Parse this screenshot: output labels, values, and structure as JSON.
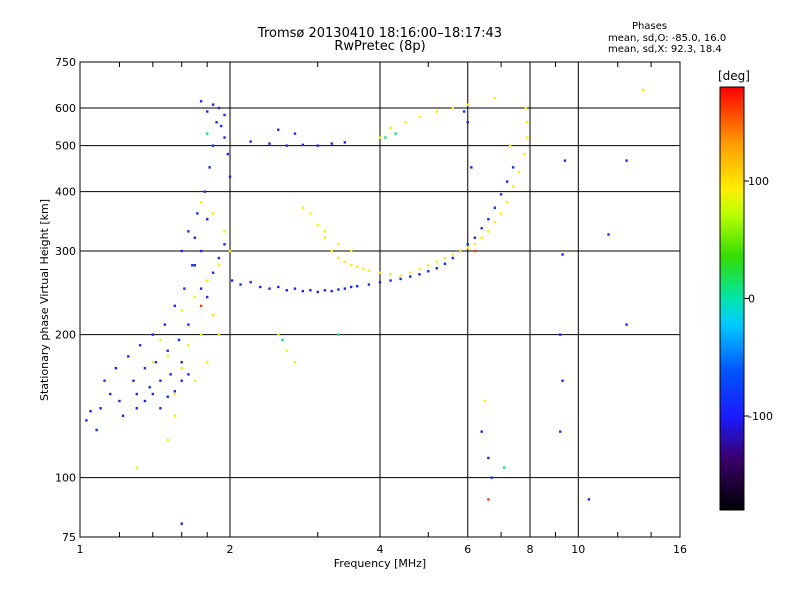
{
  "title": {
    "line1": "Tromsø 20130410 18:16:00–18:17:43",
    "line2": "RwPretec (8p)"
  },
  "info": {
    "heading": "Phases",
    "line_o": "mean, sd,O: -85.0, 16.0",
    "line_x": "mean, sd,X:  92.3, 18.4"
  },
  "chart_data": {
    "type": "scatter",
    "xlabel": "Frequency [MHz]",
    "ylabel": "Stationary phase Virtual Height [km]",
    "x_scale": "log",
    "y_scale": "log",
    "xlim": [
      1,
      16
    ],
    "ylim": [
      75,
      750
    ],
    "x_ticks": [
      1,
      2,
      4,
      6,
      8,
      10,
      16
    ],
    "x_tick_labels": [
      "1",
      "2",
      "4",
      "6",
      "8",
      "10",
      "16"
    ],
    "y_ticks": [
      75,
      100,
      200,
      300,
      400,
      500,
      600,
      750
    ],
    "y_tick_labels": [
      "75",
      "100",
      "200",
      "300",
      "400",
      "500",
      "600",
      "750"
    ],
    "grid": true,
    "colorbar": {
      "label": "[deg]",
      "range": [
        -180,
        180
      ],
      "ticks": [
        100,
        0,
        -100
      ],
      "tick_labels": [
        "100",
        "0",
        "-100"
      ]
    },
    "series": [
      {
        "color_phase": -90,
        "points": [
          [
            1.03,
            132
          ],
          [
            1.05,
            138
          ],
          [
            1.08,
            126
          ],
          [
            1.1,
            140
          ],
          [
            1.12,
            160
          ],
          [
            1.15,
            150
          ],
          [
            1.18,
            170
          ],
          [
            1.2,
            145
          ],
          [
            1.22,
            135
          ],
          [
            1.25,
            180
          ],
          [
            1.28,
            160
          ],
          [
            1.3,
            150
          ],
          [
            1.32,
            190
          ],
          [
            1.35,
            170
          ],
          [
            1.38,
            155
          ],
          [
            1.4,
            200
          ],
          [
            1.42,
            175
          ],
          [
            1.45,
            160
          ],
          [
            1.48,
            210
          ],
          [
            1.5,
            185
          ],
          [
            1.52,
            165
          ],
          [
            1.55,
            230
          ],
          [
            1.58,
            195
          ],
          [
            1.6,
            175
          ],
          [
            1.62,
            250
          ],
          [
            1.65,
            210
          ],
          [
            1.68,
            280
          ],
          [
            1.7,
            320
          ],
          [
            1.72,
            360
          ],
          [
            1.75,
            300
          ],
          [
            1.78,
            400
          ],
          [
            1.8,
            350
          ],
          [
            1.82,
            450
          ],
          [
            1.85,
            500
          ],
          [
            1.88,
            560
          ],
          [
            1.9,
            600
          ],
          [
            1.92,
            550
          ],
          [
            1.95,
            520
          ],
          [
            1.98,
            480
          ],
          [
            2.0,
            430
          ],
          [
            1.75,
            620
          ],
          [
            1.8,
            590
          ],
          [
            1.85,
            610
          ],
          [
            1.95,
            580
          ],
          [
            2.02,
            260
          ],
          [
            2.1,
            255
          ],
          [
            2.2,
            258
          ],
          [
            2.3,
            252
          ],
          [
            2.4,
            250
          ],
          [
            2.5,
            252
          ],
          [
            2.6,
            248
          ],
          [
            2.7,
            250
          ],
          [
            2.8,
            247
          ],
          [
            2.9,
            248
          ],
          [
            3.0,
            246
          ],
          [
            3.1,
            248
          ],
          [
            3.2,
            247
          ],
          [
            3.3,
            249
          ],
          [
            3.4,
            250
          ],
          [
            3.5,
            252
          ],
          [
            3.6,
            253
          ],
          [
            3.8,
            255
          ],
          [
            4.0,
            258
          ],
          [
            4.2,
            260
          ],
          [
            4.4,
            262
          ],
          [
            4.6,
            265
          ],
          [
            4.8,
            268
          ],
          [
            5.0,
            272
          ],
          [
            5.2,
            276
          ],
          [
            5.4,
            282
          ],
          [
            5.6,
            290
          ],
          [
            5.8,
            300
          ],
          [
            6.0,
            310
          ],
          [
            6.2,
            320
          ],
          [
            6.4,
            335
          ],
          [
            6.6,
            350
          ],
          [
            6.8,
            370
          ],
          [
            7.0,
            395
          ],
          [
            7.2,
            420
          ],
          [
            7.4,
            450
          ],
          [
            2.2,
            510
          ],
          [
            2.4,
            505
          ],
          [
            2.6,
            500
          ],
          [
            2.8,
            502
          ],
          [
            3.0,
            500
          ],
          [
            3.2,
            505
          ],
          [
            3.4,
            508
          ],
          [
            2.5,
            540
          ],
          [
            2.7,
            530
          ],
          [
            1.6,
            300
          ],
          [
            1.65,
            330
          ],
          [
            1.7,
            280
          ],
          [
            1.75,
            250
          ],
          [
            1.8,
            240
          ],
          [
            1.85,
            270
          ],
          [
            1.9,
            290
          ],
          [
            1.95,
            310
          ],
          [
            1.3,
            140
          ],
          [
            1.35,
            145
          ],
          [
            1.4,
            150
          ],
          [
            1.45,
            140
          ],
          [
            1.5,
            148
          ],
          [
            1.55,
            152
          ],
          [
            1.6,
            160
          ],
          [
            1.65,
            165
          ],
          [
            9.2,
            125
          ],
          [
            9.3,
            160
          ],
          [
            9.2,
            200
          ],
          [
            9.3,
            295
          ],
          [
            9.4,
            465
          ],
          [
            12.5,
            465
          ],
          [
            12.5,
            210
          ],
          [
            11.5,
            325
          ],
          [
            6.1,
            450
          ],
          [
            6.0,
            560
          ],
          [
            5.9,
            590
          ],
          [
            6.6,
            110
          ],
          [
            6.7,
            100
          ],
          [
            1.6,
            80
          ],
          [
            10.5,
            90
          ],
          [
            6.4,
            125
          ]
        ]
      },
      {
        "color_phase": 95,
        "points": [
          [
            1.55,
            150
          ],
          [
            1.6,
            170
          ],
          [
            1.65,
            190
          ],
          [
            1.7,
            160
          ],
          [
            1.75,
            200
          ],
          [
            1.8,
            175
          ],
          [
            1.85,
            220
          ],
          [
            1.9,
            200
          ],
          [
            1.6,
            225
          ],
          [
            1.7,
            240
          ],
          [
            1.8,
            260
          ],
          [
            1.9,
            280
          ],
          [
            2.0,
            300
          ],
          [
            1.95,
            330
          ],
          [
            1.85,
            360
          ],
          [
            1.75,
            380
          ],
          [
            3.1,
            320
          ],
          [
            3.2,
            300
          ],
          [
            3.3,
            290
          ],
          [
            3.4,
            285
          ],
          [
            3.5,
            280
          ],
          [
            3.6,
            278
          ],
          [
            3.7,
            275
          ],
          [
            3.8,
            273
          ],
          [
            4.0,
            270
          ],
          [
            4.2,
            268
          ],
          [
            4.4,
            266
          ],
          [
            4.6,
            270
          ],
          [
            4.8,
            275
          ],
          [
            5.0,
            280
          ],
          [
            5.2,
            285
          ],
          [
            5.4,
            290
          ],
          [
            5.6,
            295
          ],
          [
            5.8,
            300
          ],
          [
            6.0,
            305
          ],
          [
            6.2,
            310
          ],
          [
            6.4,
            320
          ],
          [
            6.6,
            330
          ],
          [
            6.8,
            345
          ],
          [
            7.0,
            360
          ],
          [
            7.2,
            380
          ],
          [
            7.4,
            410
          ],
          [
            7.6,
            440
          ],
          [
            7.8,
            480
          ],
          [
            7.9,
            520
          ],
          [
            7.9,
            560
          ],
          [
            7.85,
            600
          ],
          [
            2.9,
            360
          ],
          [
            3.0,
            340
          ],
          [
            3.1,
            330
          ],
          [
            2.8,
            370
          ],
          [
            3.3,
            310
          ],
          [
            3.5,
            300
          ],
          [
            4.0,
            520
          ],
          [
            4.2,
            545
          ],
          [
            4.5,
            560
          ],
          [
            4.8,
            575
          ],
          [
            5.2,
            590
          ],
          [
            5.6,
            600
          ],
          [
            6.0,
            610
          ],
          [
            2.6,
            185
          ],
          [
            2.7,
            175
          ],
          [
            2.5,
            200
          ],
          [
            6.8,
            630
          ],
          [
            7.3,
            500
          ],
          [
            6.5,
            145
          ],
          [
            13.5,
            655
          ],
          [
            1.4,
            175
          ],
          [
            1.5,
            180
          ],
          [
            1.45,
            195
          ],
          [
            1.3,
            105
          ],
          [
            1.5,
            120
          ],
          [
            1.55,
            135
          ]
        ]
      },
      {
        "color_phase": 10,
        "points": [
          [
            4.1,
            520
          ],
          [
            4.3,
            530
          ],
          [
            3.3,
            200
          ],
          [
            2.55,
            195
          ],
          [
            7.1,
            105
          ],
          [
            1.8,
            530
          ]
        ]
      },
      {
        "color_phase": 160,
        "points": [
          [
            6.6,
            90
          ],
          [
            1.75,
            230
          ],
          [
            6.2,
            300
          ]
        ]
      }
    ]
  }
}
